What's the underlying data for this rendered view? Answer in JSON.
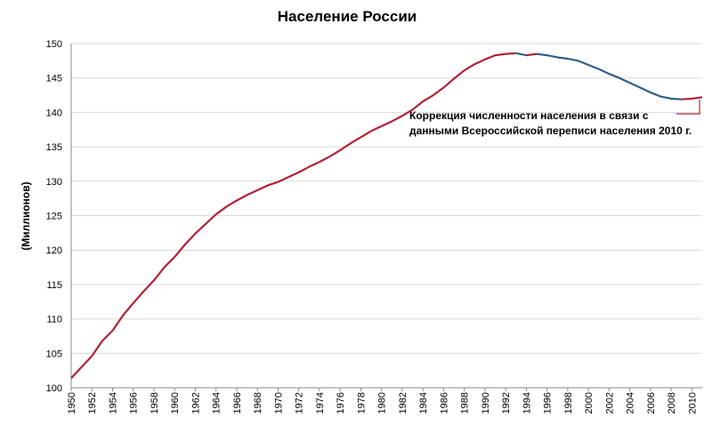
{
  "chart_data": {
    "type": "line",
    "title": "Население России",
    "y_label": "(Миллионов)",
    "annotation": [
      "Коррекция численности населения в связи с",
      "данными Всероссийской переписи населения 2010 г."
    ],
    "x": [
      1950,
      1951,
      1952,
      1953,
      1954,
      1955,
      1956,
      1957,
      1958,
      1959,
      1960,
      1961,
      1962,
      1963,
      1964,
      1965,
      1966,
      1967,
      1968,
      1969,
      1970,
      1971,
      1972,
      1973,
      1974,
      1975,
      1976,
      1977,
      1978,
      1979,
      1980,
      1981,
      1982,
      1983,
      1984,
      1985,
      1986,
      1987,
      1988,
      1989,
      1990,
      1991,
      1992,
      1993,
      1994,
      1995,
      1996,
      1997,
      1998,
      1999,
      2000,
      2001,
      2002,
      2003,
      2004,
      2005,
      2006,
      2007,
      2008,
      2009,
      2010,
      2011
    ],
    "values": [
      101.4,
      103.0,
      104.6,
      106.8,
      108.3,
      110.5,
      112.3,
      114.0,
      115.6,
      117.5,
      119.0,
      120.8,
      122.4,
      123.8,
      125.2,
      126.3,
      127.2,
      128.0,
      128.7,
      129.4,
      129.9,
      130.6,
      131.3,
      132.1,
      132.8,
      133.6,
      134.5,
      135.5,
      136.4,
      137.3,
      138.0,
      138.7,
      139.5,
      140.4,
      141.6,
      142.5,
      143.6,
      144.9,
      146.1,
      147.0,
      147.7,
      148.3,
      148.5,
      148.6,
      148.3,
      148.5,
      148.3,
      148.0,
      147.8,
      147.5,
      146.9,
      146.3,
      145.6,
      145.0,
      144.3,
      143.6,
      142.9,
      142.3,
      142.0,
      141.9,
      142.0,
      142.2
    ],
    "color_rise": "#b22234",
    "color_fall": "#2e5f8a",
    "xlim": [
      1950,
      2011
    ],
    "xticks": [
      1950,
      1952,
      1954,
      1956,
      1958,
      1960,
      1962,
      1964,
      1966,
      1968,
      1970,
      1972,
      1974,
      1976,
      1978,
      1980,
      1982,
      1984,
      1986,
      1988,
      1990,
      1992,
      1994,
      1996,
      1998,
      2000,
      2002,
      2004,
      2006,
      2008,
      2010
    ],
    "ylim": [
      100,
      150
    ],
    "yticks": [
      100,
      105,
      110,
      115,
      120,
      125,
      130,
      135,
      140,
      145,
      150
    ],
    "grid": true
  }
}
